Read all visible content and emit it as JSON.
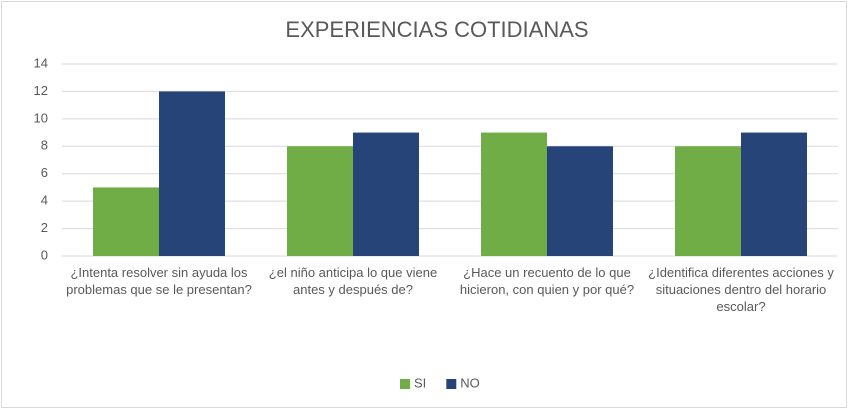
{
  "chart_data": {
    "type": "bar",
    "title": "EXPERIENCIAS COTIDIANAS",
    "categories": [
      "¿Intenta resolver sin ayuda los problemas que se le presentan?",
      "¿el niño anticipa lo que viene antes y después de?",
      "¿Hace un recuento de lo que hicieron, con quien y por qué?",
      "¿Identifica diferentes acciones y situaciones dentro del horario escolar?"
    ],
    "series": [
      {
        "name": "SI",
        "color": "#70ad47",
        "values": [
          5,
          8,
          9,
          8
        ]
      },
      {
        "name": "NO",
        "color": "#264478",
        "values": [
          12,
          9,
          8,
          9
        ]
      }
    ],
    "ylim": [
      0,
      14
    ],
    "yticks": [
      0,
      2,
      4,
      6,
      8,
      10,
      12,
      14
    ],
    "grid": true,
    "legend": "bottom"
  }
}
